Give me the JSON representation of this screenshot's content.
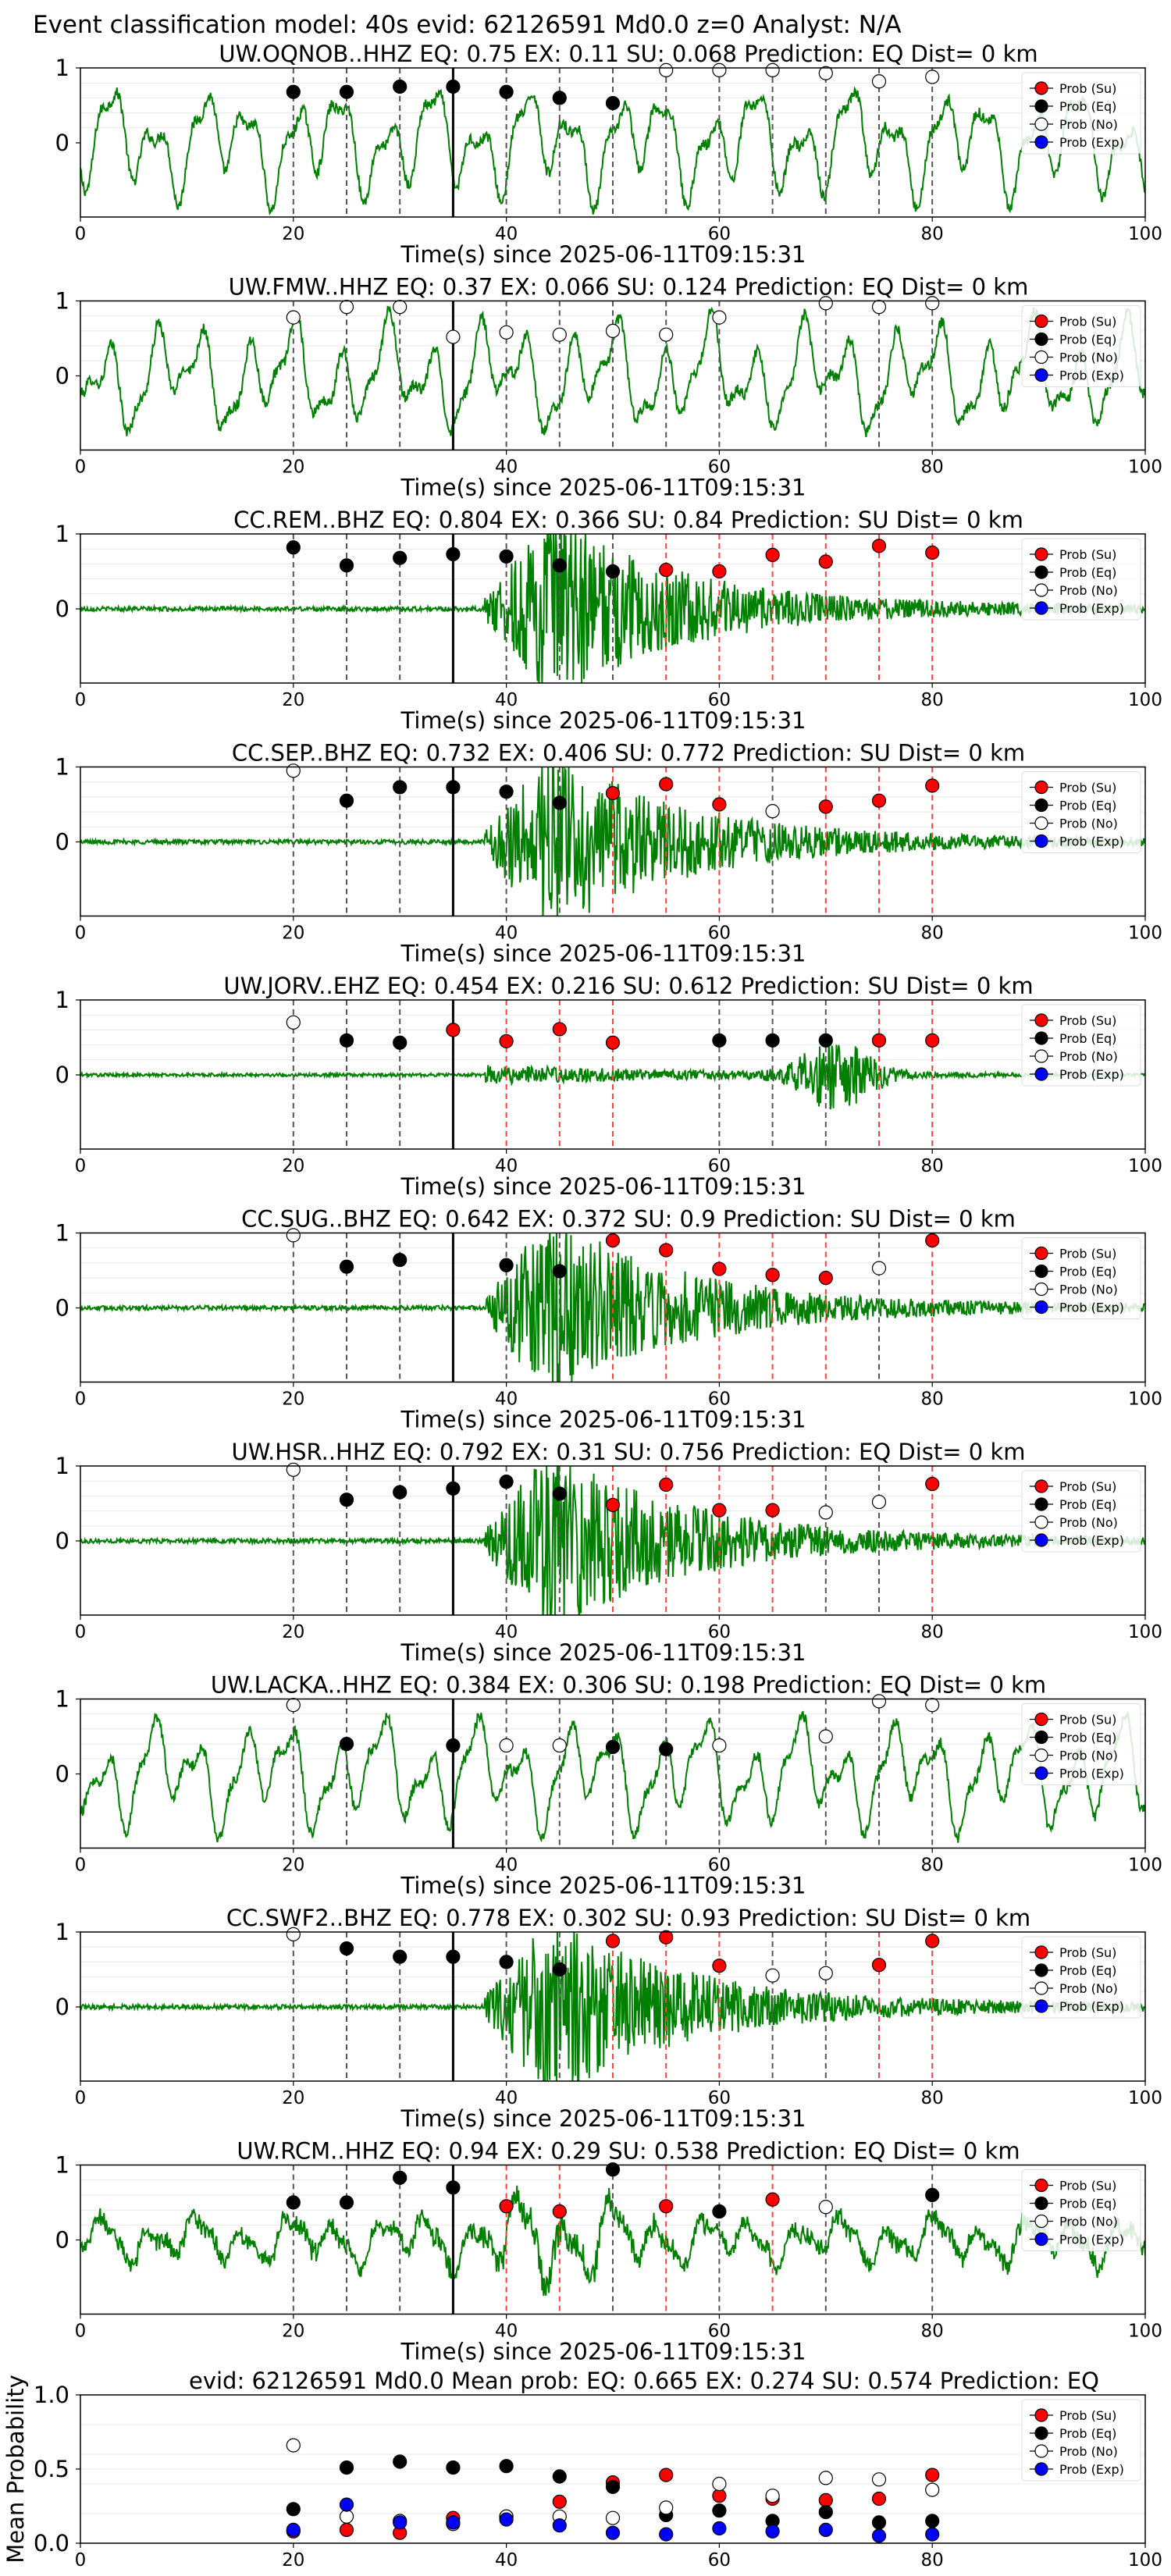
{
  "figure_title": "Event classification model: 40s evid: 62126591 Md0.0 z=0 Analyst: N/A",
  "colors": {
    "waveform": "#008000",
    "su": "#ff0000",
    "eq": "#000000",
    "no": "#ffffff",
    "exp": "#0000ff",
    "vline_eq": "#555555",
    "vline_su": "#ff4040",
    "grid": "#e8e8e8"
  },
  "legend_labels": [
    "Prob (Su)",
    "Prob (Eq)",
    "Prob (No)",
    "Prob (Exp)"
  ],
  "legend_placement": "top-right",
  "chart_data": [
    {
      "type": "scatter",
      "station": "UW.OQNOB..HHZ",
      "wave": "noise",
      "title": "UW.OQNOB..HHZ   EQ: 0.75   EX: 0.11   SU: 0.068   Prediction: EQ    Dist= 0 km",
      "xlabel": "Time(s) since 2025-06-11T09:15:31",
      "xlim": [
        0,
        100
      ],
      "xticks": [
        "0",
        "20",
        "40",
        "60",
        "80",
        "100"
      ],
      "yticks": [
        "1",
        "0"
      ],
      "arrival": 35,
      "points": [
        {
          "x": 20,
          "y": 0.68,
          "c": "eq"
        },
        {
          "x": 25,
          "y": 0.68,
          "c": "eq"
        },
        {
          "x": 30,
          "y": 0.75,
          "c": "eq"
        },
        {
          "x": 35,
          "y": 0.75,
          "c": "eq"
        },
        {
          "x": 40,
          "y": 0.68,
          "c": "eq"
        },
        {
          "x": 45,
          "y": 0.6,
          "c": "eq"
        },
        {
          "x": 50,
          "y": 0.53,
          "c": "eq"
        },
        {
          "x": 55,
          "y": 0.97,
          "c": "no"
        },
        {
          "x": 60,
          "y": 0.97,
          "c": "no"
        },
        {
          "x": 65,
          "y": 0.97,
          "c": "no"
        },
        {
          "x": 70,
          "y": 0.93,
          "c": "no"
        },
        {
          "x": 75,
          "y": 0.82,
          "c": "no"
        },
        {
          "x": 80,
          "y": 0.88,
          "c": "no"
        }
      ]
    },
    {
      "type": "scatter",
      "station": "UW.FMW..HHZ",
      "wave": "noise",
      "title": "UW.FMW..HHZ   EQ: 0.37   EX: 0.066   SU: 0.124    Prediction: EQ    Dist= 0 km",
      "xlabel": "Time(s) since 2025-06-11T09:15:31",
      "xlim": [
        0,
        100
      ],
      "xticks": [
        "0",
        "20",
        "40",
        "60",
        "80",
        "100"
      ],
      "yticks": [
        "1",
        "0"
      ],
      "arrival": 35,
      "points": [
        {
          "x": 20,
          "y": 0.78,
          "c": "no"
        },
        {
          "x": 25,
          "y": 0.92,
          "c": "no"
        },
        {
          "x": 30,
          "y": 0.92,
          "c": "no"
        },
        {
          "x": 35,
          "y": 0.52,
          "c": "no"
        },
        {
          "x": 40,
          "y": 0.58,
          "c": "no"
        },
        {
          "x": 45,
          "y": 0.55,
          "c": "no"
        },
        {
          "x": 50,
          "y": 0.6,
          "c": "no"
        },
        {
          "x": 55,
          "y": 0.55,
          "c": "no"
        },
        {
          "x": 60,
          "y": 0.78,
          "c": "no"
        },
        {
          "x": 70,
          "y": 0.97,
          "c": "no"
        },
        {
          "x": 75,
          "y": 0.92,
          "c": "no"
        },
        {
          "x": 80,
          "y": 0.97,
          "c": "no"
        }
      ]
    },
    {
      "type": "scatter",
      "station": "CC.REM..BHZ",
      "wave": "quake",
      "title": "CC.REM..BHZ   EQ: 0.804   EX: 0.366   SU: 0.84    Prediction: SU    Dist= 0 km",
      "xlabel": "Time(s) since 2025-06-11T09:15:31",
      "xlim": [
        0,
        100
      ],
      "xticks": [
        "0",
        "20",
        "40",
        "60",
        "80",
        "100"
      ],
      "yticks": [
        "1",
        "0"
      ],
      "arrival": 35,
      "points": [
        {
          "x": 20,
          "y": 0.82,
          "c": "eq"
        },
        {
          "x": 25,
          "y": 0.58,
          "c": "eq"
        },
        {
          "x": 30,
          "y": 0.68,
          "c": "eq"
        },
        {
          "x": 35,
          "y": 0.73,
          "c": "eq"
        },
        {
          "x": 40,
          "y": 0.7,
          "c": "eq"
        },
        {
          "x": 45,
          "y": 0.58,
          "c": "eq"
        },
        {
          "x": 50,
          "y": 0.5,
          "c": "eq"
        },
        {
          "x": 55,
          "y": 0.52,
          "c": "su"
        },
        {
          "x": 60,
          "y": 0.5,
          "c": "su"
        },
        {
          "x": 65,
          "y": 0.72,
          "c": "su"
        },
        {
          "x": 70,
          "y": 0.63,
          "c": "su"
        },
        {
          "x": 75,
          "y": 0.84,
          "c": "su"
        },
        {
          "x": 80,
          "y": 0.75,
          "c": "su"
        }
      ]
    },
    {
      "type": "scatter",
      "station": "CC.SEP..BHZ",
      "wave": "quake",
      "title": "CC.SEP..BHZ   EQ: 0.732   EX: 0.406   SU: 0.772    Prediction: SU    Dist= 0 km",
      "xlabel": "Time(s) since 2025-06-11T09:15:31",
      "xlim": [
        0,
        100
      ],
      "xticks": [
        "0",
        "20",
        "40",
        "60",
        "80",
        "100"
      ],
      "yticks": [
        "1",
        "0"
      ],
      "arrival": 35,
      "points": [
        {
          "x": 20,
          "y": 0.95,
          "c": "no"
        },
        {
          "x": 25,
          "y": 0.55,
          "c": "eq"
        },
        {
          "x": 30,
          "y": 0.73,
          "c": "eq"
        },
        {
          "x": 35,
          "y": 0.73,
          "c": "eq"
        },
        {
          "x": 40,
          "y": 0.67,
          "c": "eq"
        },
        {
          "x": 45,
          "y": 0.52,
          "c": "eq"
        },
        {
          "x": 50,
          "y": 0.65,
          "c": "su"
        },
        {
          "x": 55,
          "y": 0.77,
          "c": "su"
        },
        {
          "x": 60,
          "y": 0.5,
          "c": "su"
        },
        {
          "x": 65,
          "y": 0.41,
          "c": "no"
        },
        {
          "x": 70,
          "y": 0.47,
          "c": "su"
        },
        {
          "x": 75,
          "y": 0.55,
          "c": "su"
        },
        {
          "x": 80,
          "y": 0.75,
          "c": "su"
        }
      ]
    },
    {
      "type": "scatter",
      "station": "UW.JORV..EHZ",
      "wave": "quake-small",
      "title": "UW.JORV..EHZ   EQ: 0.454   EX: 0.216   SU: 0.612    Prediction: SU    Dist= 0 km",
      "xlabel": "Time(s) since 2025-06-11T09:15:31",
      "xlim": [
        0,
        100
      ],
      "xticks": [
        "0",
        "20",
        "40",
        "60",
        "80",
        "100"
      ],
      "yticks": [
        "1",
        "0"
      ],
      "arrival": 35,
      "points": [
        {
          "x": 20,
          "y": 0.7,
          "c": "no"
        },
        {
          "x": 25,
          "y": 0.46,
          "c": "eq"
        },
        {
          "x": 30,
          "y": 0.43,
          "c": "eq"
        },
        {
          "x": 35,
          "y": 0.6,
          "c": "su"
        },
        {
          "x": 40,
          "y": 0.45,
          "c": "su"
        },
        {
          "x": 45,
          "y": 0.61,
          "c": "su"
        },
        {
          "x": 50,
          "y": 0.43,
          "c": "su"
        },
        {
          "x": 60,
          "y": 0.46,
          "c": "eq"
        },
        {
          "x": 65,
          "y": 0.46,
          "c": "eq"
        },
        {
          "x": 70,
          "y": 0.46,
          "c": "eq"
        },
        {
          "x": 75,
          "y": 0.46,
          "c": "su"
        },
        {
          "x": 80,
          "y": 0.46,
          "c": "su"
        }
      ]
    },
    {
      "type": "scatter",
      "station": "CC.SUG..BHZ",
      "wave": "quake",
      "title": "CC.SUG..BHZ   EQ: 0.642   EX: 0.372   SU: 0.9    Prediction: SU    Dist= 0 km",
      "xlabel": "Time(s) since 2025-06-11T09:15:31",
      "xlim": [
        0,
        100
      ],
      "xticks": [
        "0",
        "20",
        "40",
        "60",
        "80",
        "100"
      ],
      "yticks": [
        "1",
        "0"
      ],
      "arrival": 35,
      "points": [
        {
          "x": 20,
          "y": 0.97,
          "c": "no"
        },
        {
          "x": 25,
          "y": 0.55,
          "c": "eq"
        },
        {
          "x": 30,
          "y": 0.64,
          "c": "eq"
        },
        {
          "x": 40,
          "y": 0.57,
          "c": "eq"
        },
        {
          "x": 45,
          "y": 0.49,
          "c": "eq"
        },
        {
          "x": 50,
          "y": 0.9,
          "c": "su"
        },
        {
          "x": 55,
          "y": 0.77,
          "c": "su"
        },
        {
          "x": 60,
          "y": 0.52,
          "c": "su"
        },
        {
          "x": 65,
          "y": 0.44,
          "c": "su"
        },
        {
          "x": 70,
          "y": 0.4,
          "c": "su"
        },
        {
          "x": 75,
          "y": 0.53,
          "c": "no"
        },
        {
          "x": 80,
          "y": 0.9,
          "c": "su"
        }
      ]
    },
    {
      "type": "scatter",
      "station": "UW.HSR..HHZ",
      "wave": "quake",
      "title": "UW.HSR..HHZ   EQ: 0.792   EX: 0.31   SU: 0.756    Prediction: EQ    Dist= 0 km",
      "xlabel": "Time(s) since 2025-06-11T09:15:31",
      "xlim": [
        0,
        100
      ],
      "xticks": [
        "0",
        "20",
        "40",
        "60",
        "80",
        "100"
      ],
      "yticks": [
        "1",
        "0"
      ],
      "arrival": 35,
      "points": [
        {
          "x": 20,
          "y": 0.95,
          "c": "no"
        },
        {
          "x": 25,
          "y": 0.55,
          "c": "eq"
        },
        {
          "x": 30,
          "y": 0.65,
          "c": "eq"
        },
        {
          "x": 35,
          "y": 0.7,
          "c": "eq"
        },
        {
          "x": 40,
          "y": 0.79,
          "c": "eq"
        },
        {
          "x": 45,
          "y": 0.63,
          "c": "eq"
        },
        {
          "x": 50,
          "y": 0.48,
          "c": "su"
        },
        {
          "x": 55,
          "y": 0.75,
          "c": "su"
        },
        {
          "x": 60,
          "y": 0.41,
          "c": "su"
        },
        {
          "x": 65,
          "y": 0.41,
          "c": "su"
        },
        {
          "x": 70,
          "y": 0.38,
          "c": "no"
        },
        {
          "x": 75,
          "y": 0.52,
          "c": "no"
        },
        {
          "x": 80,
          "y": 0.76,
          "c": "su"
        }
      ]
    },
    {
      "type": "scatter",
      "station": "UW.LACKA..HHZ",
      "wave": "noise",
      "title": "UW.LACKA..HHZ   EQ: 0.384   EX: 0.306   SU: 0.198    Prediction: EQ    Dist= 0 km",
      "xlabel": "Time(s) since 2025-06-11T09:15:31",
      "xlim": [
        0,
        100
      ],
      "xticks": [
        "0",
        "20",
        "40",
        "60",
        "80",
        "100"
      ],
      "yticks": [
        "1",
        "0"
      ],
      "arrival": 35,
      "points": [
        {
          "x": 20,
          "y": 0.92,
          "c": "no"
        },
        {
          "x": 25,
          "y": 0.4,
          "c": "eq"
        },
        {
          "x": 35,
          "y": 0.38,
          "c": "eq"
        },
        {
          "x": 40,
          "y": 0.38,
          "c": "no"
        },
        {
          "x": 45,
          "y": 0.38,
          "c": "no"
        },
        {
          "x": 50,
          "y": 0.36,
          "c": "eq"
        },
        {
          "x": 55,
          "y": 0.33,
          "c": "eq"
        },
        {
          "x": 60,
          "y": 0.38,
          "c": "no"
        },
        {
          "x": 70,
          "y": 0.5,
          "c": "no"
        },
        {
          "x": 75,
          "y": 0.97,
          "c": "no"
        },
        {
          "x": 80,
          "y": 0.92,
          "c": "no"
        }
      ]
    },
    {
      "type": "scatter",
      "station": "CC.SWF2..BHZ",
      "wave": "quake",
      "title": "CC.SWF2..BHZ   EQ: 0.778   EX: 0.302   SU: 0.93    Prediction: SU    Dist= 0 km",
      "xlabel": "Time(s) since 2025-06-11T09:15:31",
      "xlim": [
        0,
        100
      ],
      "xticks": [
        "0",
        "20",
        "40",
        "60",
        "80",
        "100"
      ],
      "yticks": [
        "1",
        "0"
      ],
      "arrival": 35,
      "points": [
        {
          "x": 20,
          "y": 0.97,
          "c": "no"
        },
        {
          "x": 25,
          "y": 0.78,
          "c": "eq"
        },
        {
          "x": 30,
          "y": 0.67,
          "c": "eq"
        },
        {
          "x": 35,
          "y": 0.67,
          "c": "eq"
        },
        {
          "x": 40,
          "y": 0.6,
          "c": "eq"
        },
        {
          "x": 45,
          "y": 0.5,
          "c": "eq"
        },
        {
          "x": 50,
          "y": 0.88,
          "c": "su"
        },
        {
          "x": 55,
          "y": 0.93,
          "c": "su"
        },
        {
          "x": 60,
          "y": 0.55,
          "c": "su"
        },
        {
          "x": 65,
          "y": 0.42,
          "c": "no"
        },
        {
          "x": 70,
          "y": 0.45,
          "c": "no"
        },
        {
          "x": 75,
          "y": 0.56,
          "c": "su"
        },
        {
          "x": 80,
          "y": 0.88,
          "c": "su"
        }
      ]
    },
    {
      "type": "scatter",
      "station": "UW.RCM..HHZ",
      "wave": "mixed",
      "title": "UW.RCM..HHZ   EQ: 0.94   EX: 0.29   SU: 0.538    Prediction: EQ    Dist= 0 km",
      "xlabel": "Time(s) since 2025-06-11T09:15:31",
      "xlim": [
        0,
        100
      ],
      "xticks": [
        "0",
        "20",
        "40",
        "60",
        "80",
        "100"
      ],
      "yticks": [
        "1",
        "0"
      ],
      "arrival": 35,
      "points": [
        {
          "x": 20,
          "y": 0.5,
          "c": "eq"
        },
        {
          "x": 25,
          "y": 0.5,
          "c": "eq"
        },
        {
          "x": 30,
          "y": 0.83,
          "c": "eq"
        },
        {
          "x": 35,
          "y": 0.7,
          "c": "eq"
        },
        {
          "x": 40,
          "y": 0.45,
          "c": "su"
        },
        {
          "x": 45,
          "y": 0.38,
          "c": "su"
        },
        {
          "x": 50,
          "y": 0.94,
          "c": "eq"
        },
        {
          "x": 55,
          "y": 0.45,
          "c": "su"
        },
        {
          "x": 60,
          "y": 0.38,
          "c": "eq"
        },
        {
          "x": 65,
          "y": 0.54,
          "c": "su"
        },
        {
          "x": 70,
          "y": 0.44,
          "c": "no"
        },
        {
          "x": 80,
          "y": 0.6,
          "c": "eq"
        }
      ]
    },
    {
      "type": "scatter",
      "station": "mean",
      "title": "evid: 62126591  Md0.0   Mean prob:   EQ: 0.665  EX: 0.274  SU: 0.574   Prediction: EQ",
      "ylabel": "Mean Probability",
      "xlim": [
        0,
        100
      ],
      "ylim": [
        0,
        1
      ],
      "xticks": [
        "0",
        "20",
        "40",
        "60",
        "80",
        "100"
      ],
      "yticks": [
        "0.0",
        "0.5",
        "1.0"
      ],
      "series": [
        {
          "name": "Prob (Su)",
          "c": "su",
          "x": [
            20,
            25,
            30,
            35,
            40,
            45,
            50,
            55,
            60,
            65,
            70,
            75,
            80
          ],
          "values": [
            0.08,
            0.09,
            0.07,
            0.17,
            0.18,
            0.28,
            0.41,
            0.46,
            0.32,
            0.3,
            0.29,
            0.3,
            0.46
          ]
        },
        {
          "name": "Prob (Eq)",
          "c": "eq",
          "x": [
            20,
            25,
            30,
            35,
            40,
            45,
            50,
            55,
            60,
            65,
            70,
            75,
            80
          ],
          "values": [
            0.23,
            0.51,
            0.55,
            0.51,
            0.52,
            0.45,
            0.38,
            0.19,
            0.22,
            0.15,
            0.21,
            0.14,
            0.15
          ]
        },
        {
          "name": "Prob (No)",
          "c": "no",
          "x": [
            20,
            25,
            30,
            35,
            40,
            45,
            50,
            55,
            60,
            65,
            70,
            75,
            80
          ],
          "values": [
            0.66,
            0.18,
            0.15,
            0.13,
            0.18,
            0.18,
            0.17,
            0.24,
            0.4,
            0.32,
            0.44,
            0.43,
            0.36
          ]
        },
        {
          "name": "Prob (Exp)",
          "c": "exp",
          "x": [
            20,
            25,
            30,
            35,
            40,
            45,
            50,
            55,
            60,
            65,
            70,
            75,
            80
          ],
          "values": [
            0.09,
            0.26,
            0.14,
            0.14,
            0.16,
            0.12,
            0.07,
            0.06,
            0.1,
            0.08,
            0.09,
            0.05,
            0.06
          ]
        }
      ]
    }
  ]
}
